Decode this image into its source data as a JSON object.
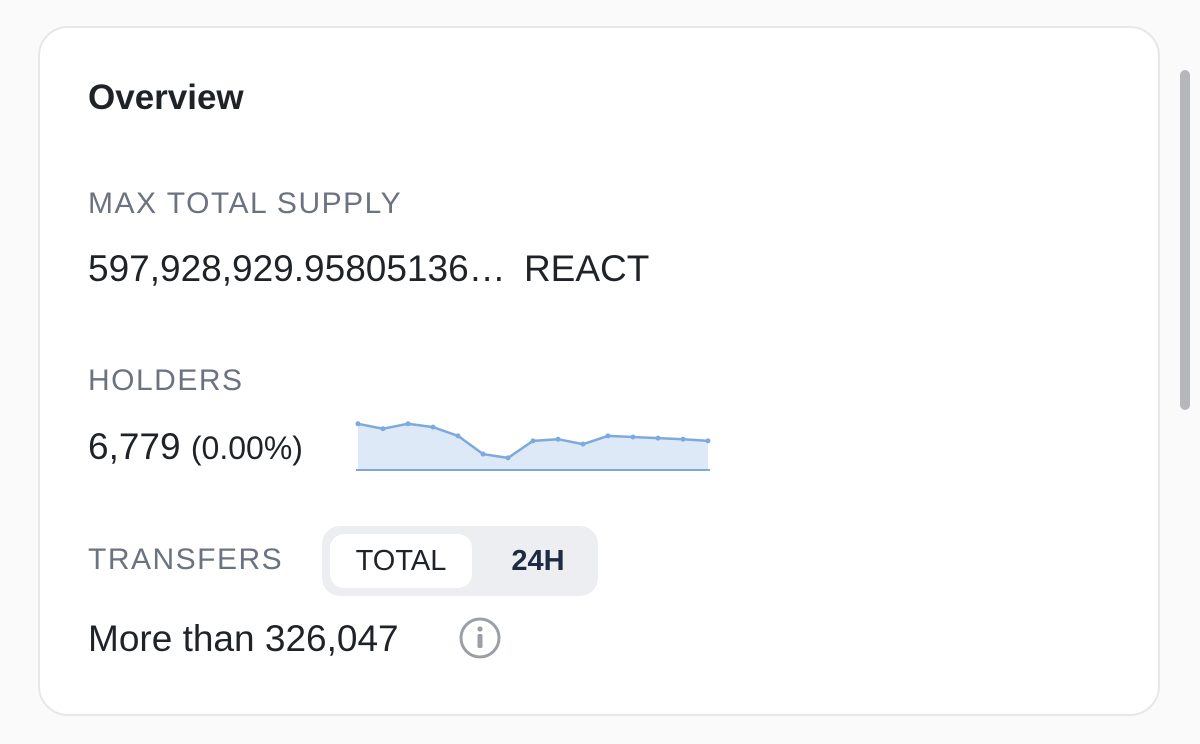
{
  "header": {
    "title": "Overview"
  },
  "max_total_supply": {
    "label": "MAX TOTAL SUPPLY",
    "value": "597,928,929.95805136…",
    "unit": "REACT"
  },
  "holders": {
    "label": "HOLDERS",
    "value": "6,779",
    "change": "(0.00%)",
    "sparkline": {
      "type": "line",
      "values": [
        84,
        75,
        84,
        78,
        62,
        29,
        22,
        53,
        56,
        47,
        62,
        60,
        58,
        56,
        53
      ],
      "ylim": [
        0,
        100
      ],
      "color": "#7ea9de",
      "fill": "#dde9f7"
    }
  },
  "transfers": {
    "label": "TRANSFERS",
    "tabs": [
      "TOTAL",
      "24H"
    ],
    "value": "More than 326,047"
  }
}
